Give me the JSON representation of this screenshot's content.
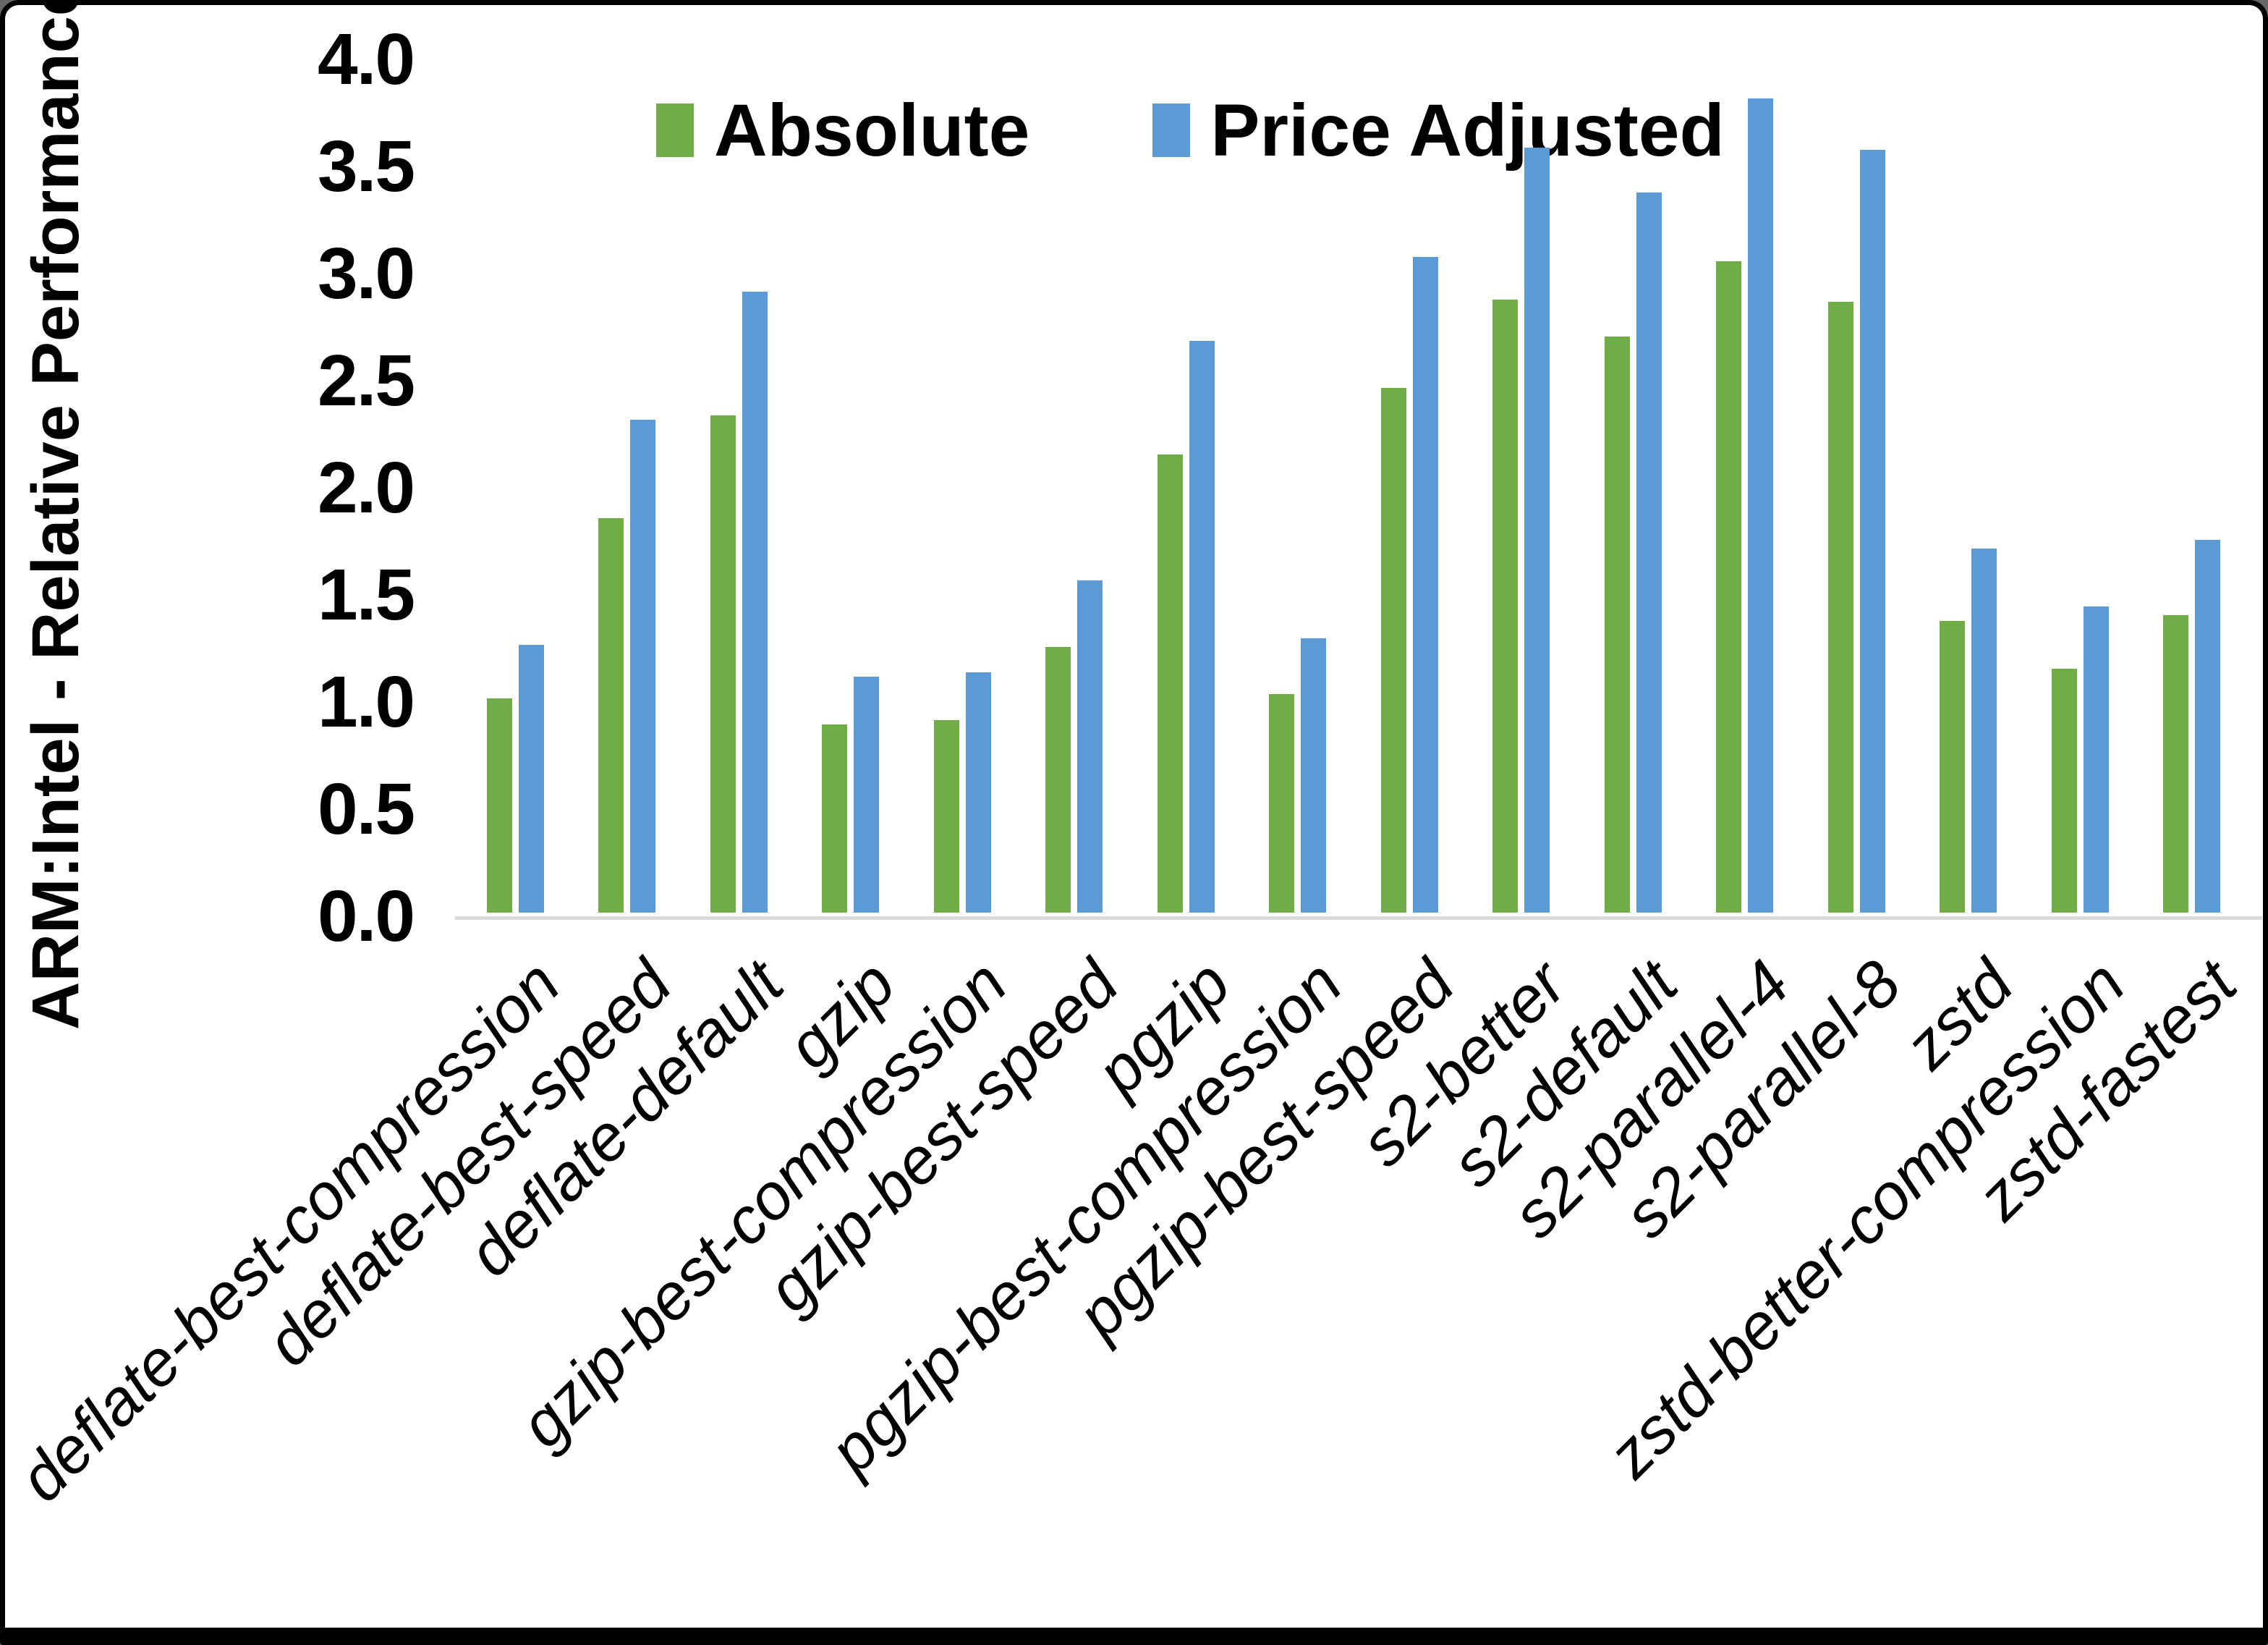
{
  "page": {
    "background": "#ffffff",
    "frame_border_color": "#000000"
  },
  "chart_data": {
    "type": "bar",
    "title": "",
    "xlabel": "",
    "ylabel": "ARM:Intel - Relative Performance",
    "ylim": [
      0.0,
      4.0
    ],
    "ytick_step": 0.5,
    "ytick_labels": [
      "0.0",
      "0.5",
      "1.0",
      "1.5",
      "2.0",
      "2.5",
      "3.0",
      "3.5",
      "4.0"
    ],
    "grid": false,
    "legend_position": "top-center",
    "axis_line_color": "#d9d9d9",
    "text_color": "#000000",
    "categories": [
      "deflate-best-compression",
      "deflate-best-speed",
      "deflate-default",
      "gzip",
      "gzip-best-compression",
      "gzip-best-speed",
      "pgzip",
      "pgzip-best-compression",
      "pgzip-best-speed",
      "s2-better",
      "s2-default",
      "s2-parallel-4",
      "s2-parallel-8",
      "zstd",
      "zstd-better-compression",
      "zstd-fastest"
    ],
    "series": [
      {
        "name": "Absolute",
        "color": "#70AD47",
        "values": [
          1.0,
          1.84,
          2.32,
          0.88,
          0.9,
          1.24,
          2.14,
          1.02,
          2.45,
          2.86,
          2.69,
          3.04,
          2.85,
          1.36,
          1.14,
          1.39
        ]
      },
      {
        "name": "Price Adjusted",
        "color": "#5B9BD5",
        "values": [
          1.25,
          2.3,
          2.9,
          1.1,
          1.12,
          1.55,
          2.67,
          1.28,
          3.06,
          3.57,
          3.36,
          3.8,
          3.56,
          1.7,
          1.43,
          1.74
        ]
      }
    ]
  }
}
